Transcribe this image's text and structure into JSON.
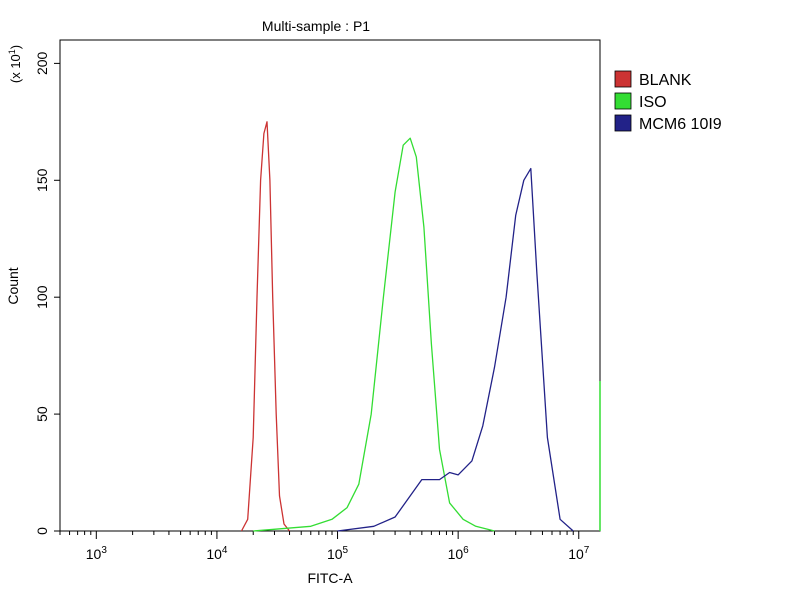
{
  "chart_data": {
    "type": "line",
    "title": "Multi-sample : P1",
    "xlabel": "FITC-A",
    "ylabel": "Count",
    "y_multiplier": "(x 10",
    "y_multiplier_exp": "1",
    "y_multiplier_close": ")",
    "x_scale": "log",
    "xlim": [
      500,
      15000000
    ],
    "ylim": [
      0,
      210
    ],
    "x_ticks": [
      {
        "value": 1000,
        "base": "10",
        "exp": "3"
      },
      {
        "value": 10000,
        "base": "10",
        "exp": "4"
      },
      {
        "value": 100000,
        "base": "10",
        "exp": "5"
      },
      {
        "value": 1000000,
        "base": "10",
        "exp": "6"
      },
      {
        "value": 10000000,
        "base": "10",
        "exp": "7"
      }
    ],
    "y_ticks": [
      {
        "value": 0,
        "label": "0"
      },
      {
        "value": 50,
        "label": "50"
      },
      {
        "value": 100,
        "label": "100"
      },
      {
        "value": 150,
        "label": "150"
      },
      {
        "value": 200,
        "label": "200"
      }
    ],
    "grid": false,
    "legend_position": "right",
    "series": [
      {
        "name": "BLANK",
        "color": "#cc3333",
        "x": [
          16000,
          18000,
          20000,
          21500,
          23000,
          24500,
          26000,
          27500,
          29000,
          31000,
          33000,
          36000,
          40000
        ],
        "y": [
          0,
          5,
          40,
          100,
          150,
          170,
          175,
          150,
          100,
          50,
          15,
          3,
          0
        ]
      },
      {
        "name": "ISO",
        "color": "#33dd33",
        "x": [
          20000,
          60000,
          90000,
          120000,
          150000,
          190000,
          240000,
          300000,
          350000,
          400000,
          450000,
          520000,
          600000,
          700000,
          850000,
          1100000,
          1400000,
          2000000
        ],
        "y": [
          0,
          2,
          5,
          10,
          20,
          50,
          100,
          145,
          165,
          168,
          160,
          130,
          80,
          35,
          12,
          5,
          2,
          0
        ]
      },
      {
        "name": "MCM6 10I9",
        "color": "#222288",
        "x": [
          100000,
          200000,
          300000,
          400000,
          500000,
          600000,
          700000,
          850000,
          1000000,
          1300000,
          1600000,
          2000000,
          2500000,
          3000000,
          3500000,
          4000000,
          4500000,
          5500000,
          7000000,
          9000000
        ],
        "y": [
          0,
          2,
          6,
          15,
          22,
          22,
          22,
          25,
          24,
          30,
          45,
          70,
          100,
          135,
          150,
          155,
          110,
          40,
          5,
          0
        ]
      }
    ]
  }
}
